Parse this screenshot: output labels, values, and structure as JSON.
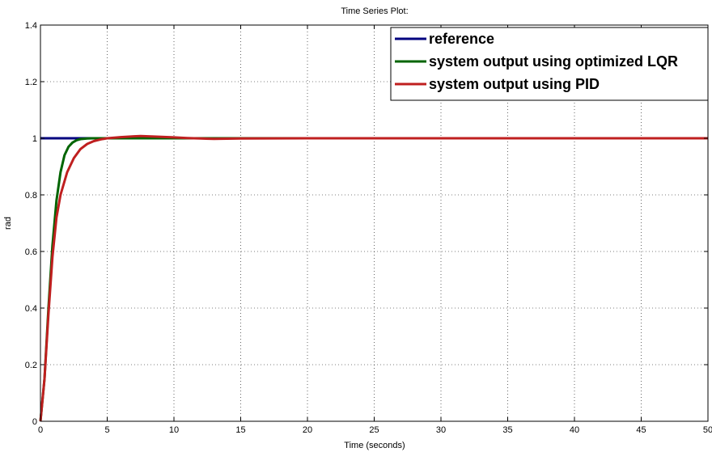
{
  "chart_data": {
    "type": "line",
    "title": "Time Series Plot:",
    "xlabel": "Time (seconds)",
    "ylabel": "rad",
    "xlim": [
      0,
      50
    ],
    "ylim": [
      0,
      1.4
    ],
    "xticks": [
      0,
      5,
      10,
      15,
      20,
      25,
      30,
      35,
      40,
      45,
      50
    ],
    "yticks": [
      0,
      0.2,
      0.4,
      0.6,
      0.8,
      1,
      1.2,
      1.4
    ],
    "xtick_labels": [
      "0",
      "5",
      "10",
      "15",
      "20",
      "25",
      "30",
      "35",
      "40",
      "45",
      "50"
    ],
    "ytick_labels": [
      "0",
      "0.2",
      "0.4",
      "0.6",
      "0.8",
      "1",
      "1.2",
      "1.4"
    ],
    "grid": true,
    "legend_position": "top-right",
    "series": [
      {
        "name": "reference",
        "color": "#00007f",
        "x": [
          0,
          50
        ],
        "y": [
          1,
          1
        ]
      },
      {
        "name": "system output using optimized LQR",
        "color": "#006400",
        "x": [
          0,
          0.3,
          0.6,
          0.9,
          1.2,
          1.5,
          1.8,
          2.1,
          2.4,
          2.7,
          3.0,
          3.5,
          4.0,
          5.0,
          50
        ],
        "y": [
          0,
          0.15,
          0.4,
          0.62,
          0.78,
          0.88,
          0.94,
          0.97,
          0.985,
          0.993,
          0.997,
          0.999,
          1.0,
          1.0,
          1.0
        ]
      },
      {
        "name": "system output using PID",
        "color": "#bf1f1f",
        "x": [
          0,
          0.3,
          0.6,
          0.9,
          1.2,
          1.5,
          2.0,
          2.5,
          3.0,
          3.5,
          4.0,
          4.5,
          5.0,
          6.0,
          7.0,
          7.5,
          8.5,
          10,
          11,
          12,
          13,
          15,
          20,
          25,
          30,
          35,
          40,
          45,
          50
        ],
        "y": [
          0,
          0.15,
          0.38,
          0.58,
          0.72,
          0.8,
          0.88,
          0.93,
          0.962,
          0.98,
          0.99,
          0.996,
          1.0,
          1.004,
          1.007,
          1.008,
          1.006,
          1.003,
          1.001,
          0.999,
          0.998,
          0.999,
          1.0,
          1.0,
          1.0,
          1.0,
          1.0,
          1.0,
          1.0
        ]
      }
    ]
  }
}
